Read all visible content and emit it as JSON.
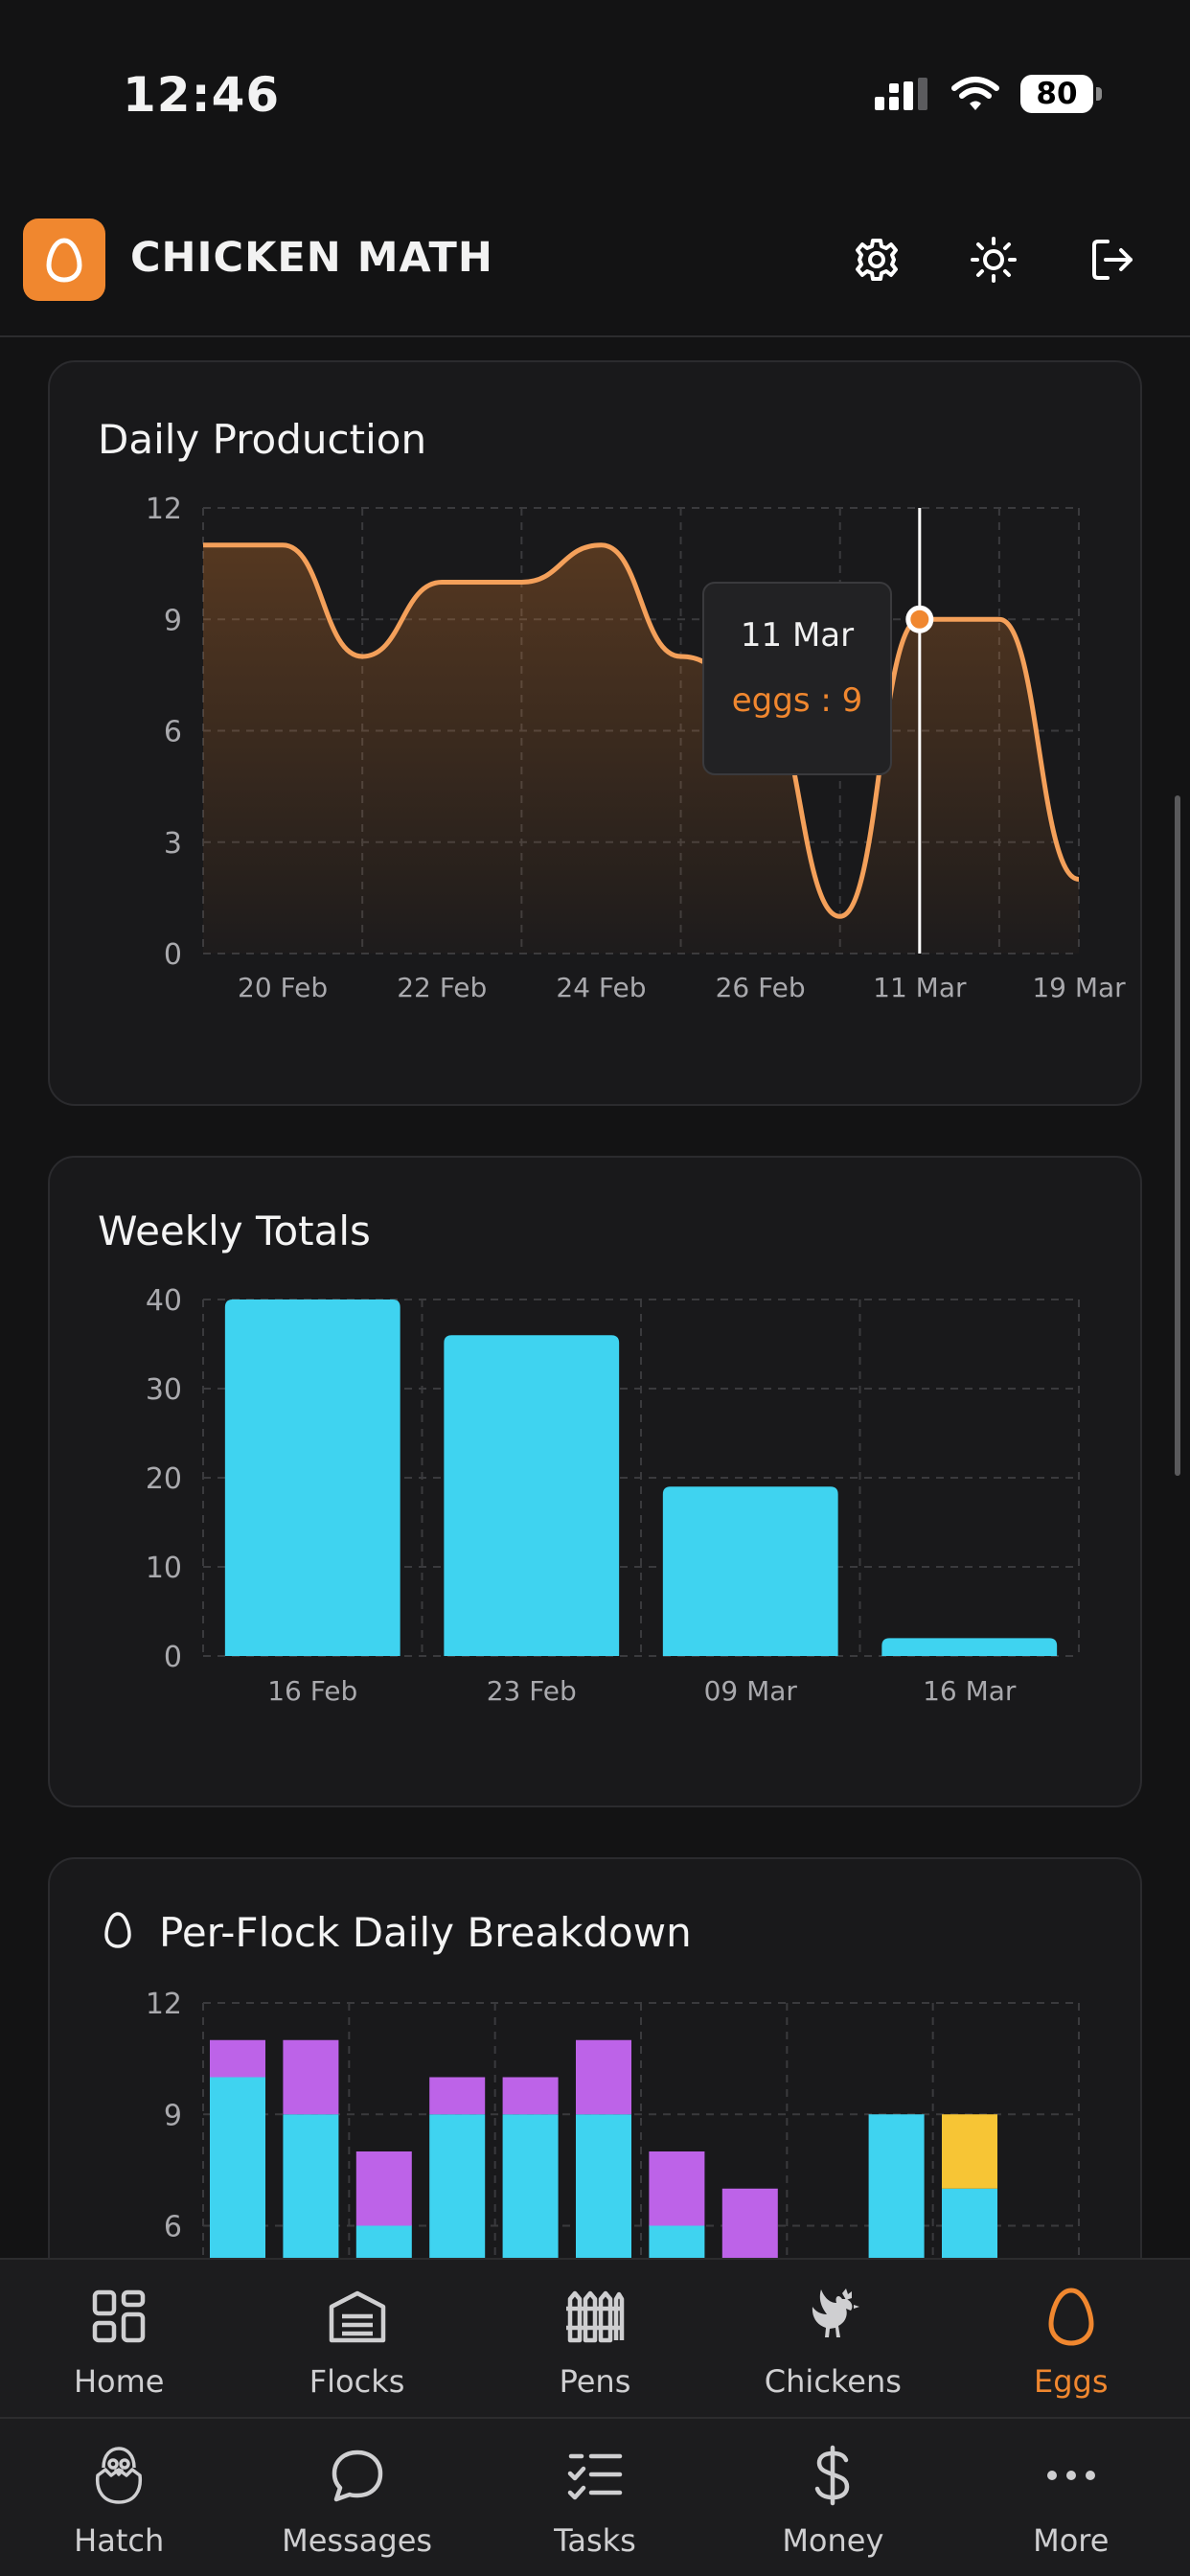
{
  "status_bar": {
    "time": "12:46",
    "battery": "80"
  },
  "header": {
    "title": "CHICKEN MATH"
  },
  "daily_production": {
    "title": "Daily Production",
    "tooltip": {
      "date": "11 Mar",
      "value_text": "eggs : 9"
    }
  },
  "weekly_totals": {
    "title": "Weekly Totals"
  },
  "per_flock": {
    "title": "Per-Flock Daily Breakdown"
  },
  "nav_top": [
    {
      "label": "Home",
      "icon": "home-grid-icon"
    },
    {
      "label": "Flocks",
      "icon": "barn-icon"
    },
    {
      "label": "Pens",
      "icon": "fence-icon"
    },
    {
      "label": "Chickens",
      "icon": "rooster-icon"
    },
    {
      "label": "Eggs",
      "icon": "egg-icon",
      "active": true
    }
  ],
  "nav_bottom": [
    {
      "label": "Hatch",
      "icon": "hatching-chick-icon"
    },
    {
      "label": "Messages",
      "icon": "chat-bubble-icon"
    },
    {
      "label": "Tasks",
      "icon": "checklist-icon"
    },
    {
      "label": "Money",
      "icon": "dollar-icon"
    },
    {
      "label": "More",
      "icon": "more-dots-icon"
    }
  ],
  "colors": {
    "accent": "#f0872f",
    "cyan": "#3fd3f0",
    "purple": "#bd63e8",
    "yellow": "#f7c535"
  },
  "chart_data": [
    {
      "type": "area",
      "title": "Daily Production",
      "x": [
        "",
        "20 Feb",
        "",
        "22 Feb",
        "",
        "24 Feb",
        "",
        "26 Feb",
        "",
        "11 Mar",
        "",
        "19 Mar"
      ],
      "series": [
        {
          "name": "eggs",
          "values": [
            11,
            11,
            8,
            10,
            10,
            11,
            8,
            7,
            1,
            9,
            9,
            2
          ]
        }
      ],
      "y_ticks": [
        0,
        3,
        6,
        9,
        12
      ],
      "ylim": [
        0,
        12
      ],
      "grid": true
    },
    {
      "type": "bar",
      "title": "Weekly Totals",
      "categories": [
        "16 Feb",
        "23 Feb",
        "09 Mar",
        "16 Mar"
      ],
      "values": [
        40,
        36,
        19,
        2
      ],
      "y_ticks": [
        0,
        10,
        20,
        30,
        40
      ],
      "ylim": [
        0,
        40
      ],
      "grid": true
    },
    {
      "type": "bar",
      "title": "Per-Flock Daily Breakdown",
      "stacked": true,
      "series": [
        {
          "color": "#3fd3f0",
          "values": [
            10,
            9,
            6,
            9,
            9,
            9,
            6,
            0,
            null,
            9,
            7
          ]
        },
        {
          "color": "#bd63e8",
          "values": [
            1,
            2,
            2,
            1,
            1,
            2,
            2,
            7,
            null,
            0,
            0
          ]
        },
        {
          "color": "#f7c535",
          "values": [
            0,
            0,
            0,
            0,
            0,
            0,
            0,
            0,
            null,
            0,
            2
          ]
        }
      ],
      "y_ticks": [
        6,
        9,
        12
      ],
      "ylim": [
        0,
        12
      ],
      "grid": true
    }
  ]
}
